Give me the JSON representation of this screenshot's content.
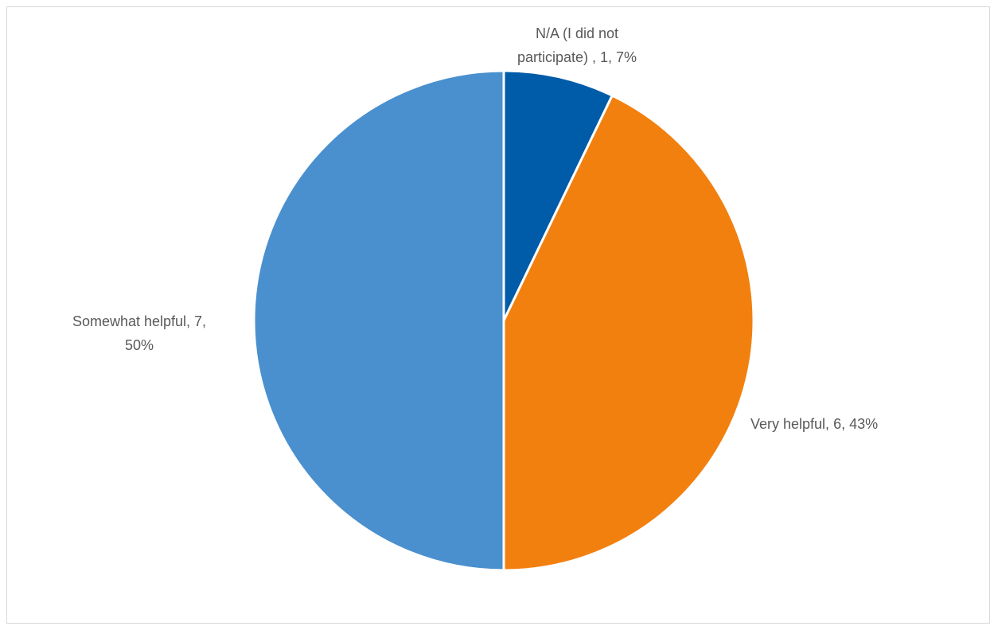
{
  "chart_data": {
    "type": "pie",
    "title": "",
    "slices": [
      {
        "name": "N/A (I did not participate)",
        "value": 1,
        "percent": 7,
        "color": "#005ba8",
        "label_lines": [
          "N/A (I did not",
          "participate) , 1, 7%"
        ],
        "label_anchor": "middle"
      },
      {
        "name": "Very helpful",
        "value": 6,
        "percent": 43,
        "color": "#f2800f",
        "label_lines": [
          "Very helpful, 6, 43%"
        ],
        "label_anchor": "start"
      },
      {
        "name": "Somewhat helpful",
        "value": 7,
        "percent": 50,
        "color": "#4a90ce",
        "label_lines": [
          "Somewhat helpful, 7,",
          "50%"
        ],
        "label_anchor": "middle"
      }
    ],
    "start_angle": "12 o'clock",
    "direction": "clockwise",
    "legend": "none",
    "slice_border_color": "#ffffff"
  }
}
